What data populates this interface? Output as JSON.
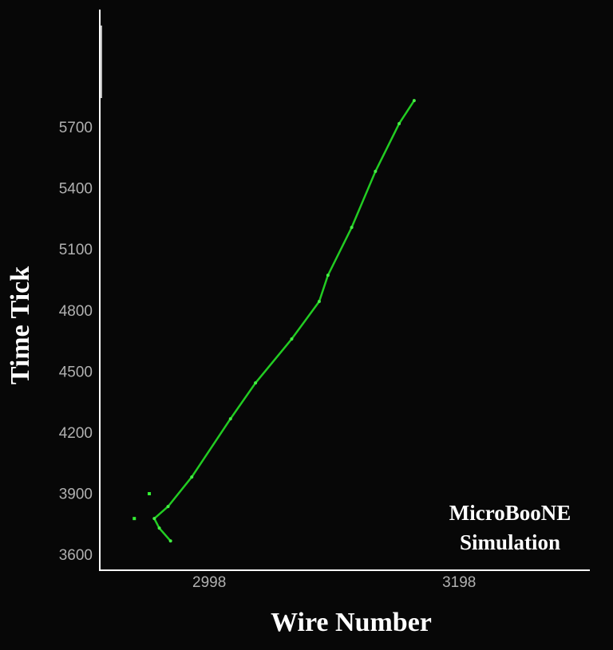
{
  "chart_data": {
    "type": "line",
    "xlabel": "Wire Number",
    "ylabel": "Time Tick",
    "annotation": [
      "MicroBooNE",
      "Simulation"
    ],
    "x": [
      2967,
      2958,
      2954,
      2965,
      2984,
      3015,
      3035,
      3064,
      3086,
      3093,
      3112,
      3131,
      3150,
      3162
    ],
    "values": [
      3674,
      3737,
      3784,
      3843,
      3988,
      4274,
      4450,
      4666,
      4850,
      4979,
      5214,
      5489,
      5724,
      5837
    ],
    "color": "#22cc22",
    "extra_hits": {
      "x": [
        2950,
        2938
      ],
      "values": [
        3906,
        3784
      ]
    },
    "xlim": [
      2911,
      3302
    ],
    "ylim": [
      3530,
      6284
    ],
    "xticks": [
      2998,
      3198
    ],
    "yticks": [
      3600,
      3900,
      4200,
      4500,
      4800,
      5100,
      5400,
      5700
    ],
    "grid": false
  }
}
